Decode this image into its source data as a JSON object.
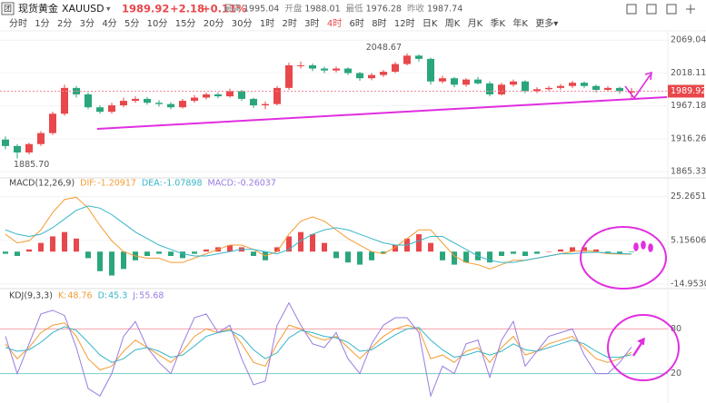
{
  "header": {
    "badge": "团",
    "name": "现货黄金",
    "symbol": "XAUUSD",
    "dropdown": "▾",
    "price": "1989.92",
    "change": "+2.18",
    "change_pct": "+0.11%",
    "stats": [
      {
        "label": "最高",
        "value": "1995.04"
      },
      {
        "label": "开盘",
        "value": "1988.01"
      },
      {
        "label": "最低",
        "value": "1976.28"
      },
      {
        "label": "昨收",
        "value": "1987.74"
      }
    ]
  },
  "timeframes": {
    "items": [
      "分时",
      "1分",
      "2分",
      "3分",
      "4分",
      "5分",
      "10分",
      "15分",
      "20分",
      "30分",
      "1时",
      "2时",
      "3时",
      "4时",
      "6时",
      "8时",
      "12时",
      "日K",
      "周K",
      "月K",
      "季K",
      "年K",
      "更多▾"
    ],
    "active": "4时"
  },
  "chart_data": [
    {
      "type": "candlestick",
      "open": [
        1915,
        1905,
        1895,
        1908,
        1925,
        1955,
        1995,
        1985,
        1965,
        1958,
        1968,
        1975,
        1978,
        1972,
        1970,
        1965,
        1975,
        1980,
        1985,
        1982,
        1990,
        1978,
        1968,
        1970,
        1995,
        2030,
        2030,
        2025,
        2022,
        2025,
        2018,
        2010,
        2015,
        2020,
        2032,
        2045,
        2040,
        2005,
        2010,
        2000,
        2008,
        2002,
        1985,
        2000,
        2005,
        1990,
        1993,
        1995,
        1998,
        2003,
        1998,
        1992,
        1995,
        1988.01
      ],
      "high": [
        1920,
        1908,
        1910,
        1928,
        1958,
        2000,
        1998,
        1988,
        1968,
        1972,
        1980,
        1982,
        1981,
        1976,
        1973,
        1978,
        1984,
        1988,
        1988,
        1994,
        1992,
        1980,
        1974,
        1998,
        2034,
        2036,
        2033,
        2028,
        2028,
        2027,
        2020,
        2018,
        2023,
        2035,
        2048.67,
        2047,
        2042,
        2014,
        2012,
        2010,
        2012,
        2005,
        2003,
        2008,
        2007,
        1996,
        1998,
        2001,
        2006,
        2005,
        2000,
        1998,
        1997,
        1995.04
      ],
      "low": [
        1900,
        1885.7,
        1892,
        1905,
        1922,
        1952,
        1980,
        1962,
        1955,
        1955,
        1965,
        1972,
        1969,
        1966,
        1962,
        1963,
        1972,
        1977,
        1979,
        1980,
        1975,
        1964,
        1962,
        1968,
        1992,
        2025,
        2021,
        2018,
        2019,
        2015,
        2006,
        2007,
        2012,
        2018,
        2030,
        2036,
        2000,
        2002,
        1996,
        1997,
        2000,
        1982,
        1983,
        1997,
        1987,
        1987,
        1990,
        1992,
        1995,
        1995,
        1988,
        1990,
        1986,
        1976.28
      ],
      "close": [
        1905,
        1895,
        1908,
        1925,
        1955,
        1995,
        1985,
        1965,
        1958,
        1968,
        1975,
        1978,
        1972,
        1970,
        1965,
        1975,
        1980,
        1985,
        1982,
        1990,
        1978,
        1968,
        1970,
        1995,
        2030,
        2030,
        2025,
        2022,
        2025,
        2018,
        2010,
        2015,
        2020,
        2032,
        2045,
        2040,
        2005,
        2010,
        2000,
        2008,
        2002,
        1985,
        2000,
        2005,
        1990,
        1993,
        1995,
        1998,
        2003,
        1998,
        1992,
        1995,
        1990,
        1989.92
      ],
      "up_color": "#e8474b",
      "down_color": "#2aa67c",
      "ylim": [
        1857,
        2082
      ],
      "yticks": [
        2069.04,
        2018.11,
        1967.18,
        1916.26,
        1865.33
      ],
      "grid": true,
      "last_price": 1989.92,
      "annotations": [
        {
          "value": 2048.67,
          "label": "2048.67"
        },
        {
          "value": 1885.7,
          "label": "1885.70"
        }
      ]
    },
    {
      "type": "macd",
      "title": "MACD(12,26,9)",
      "ylim": [
        -16.2,
        28.9
      ],
      "yticks": [
        25.26514,
        5.15606,
        -14.95301
      ],
      "grid": true,
      "up_color": "#e8474b",
      "down_color": "#2aa67c",
      "series": [
        {
          "name": "DIF:",
          "color": "#f39c33",
          "style": "line",
          "values": [
            8,
            4,
            5,
            10,
            18,
            24,
            25,
            20,
            12,
            5,
            0,
            -2,
            -3,
            -3,
            -5,
            -5,
            -3,
            -1,
            1,
            3,
            3,
            1,
            -2,
            0,
            8,
            14,
            16,
            14,
            10,
            6,
            3,
            0,
            -1,
            2,
            6,
            10,
            10,
            4,
            -2,
            -5,
            -6,
            -8,
            -6,
            -4,
            -4,
            -3,
            -2,
            -1,
            0,
            0.5,
            0,
            -1,
            -1.1,
            -1.20917
          ]
        },
        {
          "name": "DEA:",
          "color": "#35b5c9",
          "style": "line",
          "values": [
            10,
            8,
            7,
            8,
            11,
            15,
            19,
            21,
            20,
            17,
            13,
            9,
            6,
            3,
            1,
            -1,
            -2,
            -2,
            -1,
            0,
            1,
            1,
            0,
            -1,
            1,
            5,
            8,
            10,
            11,
            10,
            8,
            6,
            4,
            3,
            3,
            5,
            7,
            7,
            4,
            1,
            -2,
            -4,
            -5,
            -5,
            -4,
            -3,
            -2,
            -1,
            -1,
            -0.5,
            -0.3,
            -0.6,
            -0.9,
            -1.07898
          ]
        },
        {
          "name": "MACD:",
          "color": "#9a7be0",
          "style": "bar",
          "values": [
            -1,
            -2,
            1,
            4,
            7,
            9,
            6,
            -3,
            -9,
            -11,
            -8,
            -4,
            -2,
            -1,
            -2,
            -3,
            -1,
            1,
            2,
            3,
            2,
            -2,
            -4,
            2,
            7,
            9,
            8,
            4,
            -3,
            -5,
            -6,
            -4,
            -1,
            3,
            6,
            8,
            4,
            -4,
            -6,
            -5,
            -4,
            -5,
            -2,
            -1,
            -2,
            -1,
            0,
            1,
            2,
            2,
            1,
            -0.5,
            -0.8,
            -0.26037
          ]
        }
      ]
    },
    {
      "type": "kdj",
      "title": "KDJ(9,3,3)",
      "ylim": [
        -17,
        117
      ],
      "yticks": [
        80,
        20
      ],
      "tick_colors": [
        "#f4a0a8",
        "#7ccfc8"
      ],
      "grid": false,
      "series": [
        {
          "name": "K:",
          "color": "#f39c33",
          "style": "line",
          "values": [
            60,
            40,
            55,
            75,
            85,
            88,
            70,
            40,
            25,
            30,
            50,
            65,
            55,
            45,
            35,
            50,
            70,
            80,
            75,
            80,
            60,
            35,
            30,
            60,
            85,
            80,
            70,
            65,
            70,
            55,
            40,
            55,
            70,
            80,
            85,
            80,
            40,
            45,
            35,
            50,
            55,
            35,
            55,
            70,
            45,
            50,
            60,
            65,
            70,
            55,
            40,
            35,
            40,
            48.76
          ]
        },
        {
          "name": "D:",
          "color": "#35b5c9",
          "style": "line",
          "values": [
            55,
            50,
            52,
            62,
            75,
            83,
            78,
            62,
            45,
            35,
            40,
            52,
            55,
            50,
            42,
            45,
            57,
            70,
            75,
            78,
            70,
            52,
            40,
            48,
            68,
            78,
            75,
            70,
            68,
            62,
            50,
            52,
            62,
            72,
            80,
            82,
            65,
            52,
            42,
            45,
            50,
            45,
            50,
            60,
            52,
            50,
            55,
            60,
            65,
            60,
            50,
            42,
            42,
            45.3
          ]
        },
        {
          "name": "J:",
          "color": "#9a7be0",
          "style": "line",
          "values": [
            70,
            20,
            60,
            100,
            105,
            98,
            55,
            0,
            -10,
            20,
            70,
            90,
            55,
            35,
            20,
            60,
            95,
            100,
            75,
            85,
            40,
            5,
            10,
            85,
            115,
            85,
            60,
            55,
            75,
            40,
            20,
            60,
            85,
            95,
            95,
            75,
            -10,
            30,
            20,
            60,
            65,
            15,
            65,
            90,
            30,
            50,
            70,
            75,
            80,
            45,
            20,
            20,
            35,
            55.68
          ]
        }
      ]
    }
  ]
}
